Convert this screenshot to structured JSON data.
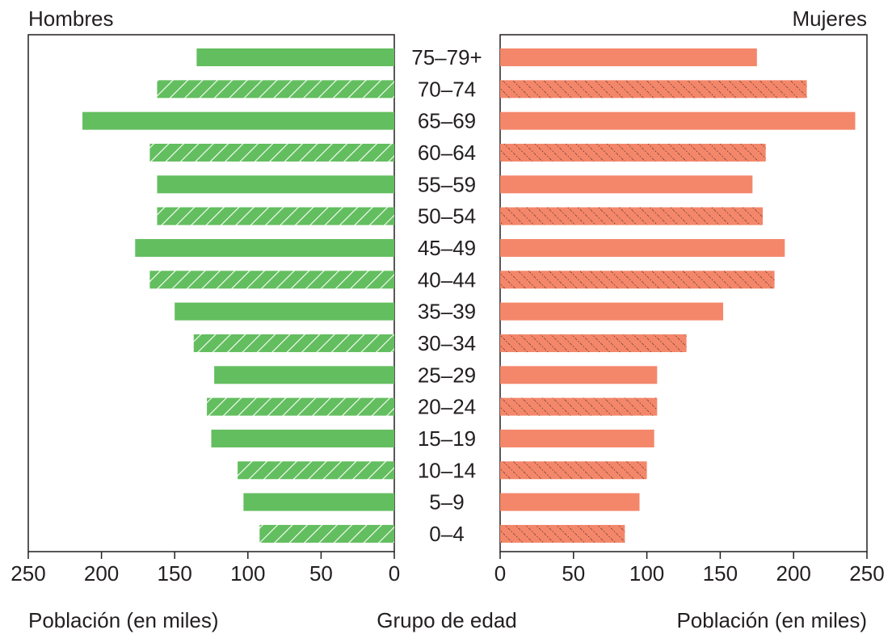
{
  "chart_data": {
    "type": "bar",
    "layout": "population-pyramid",
    "left_title": "Hombres",
    "right_title": "Mujeres",
    "center_label": "Grupo de edad",
    "xlabel_left": "Población (en miles)",
    "xlabel_right": "Población (en miles)",
    "xlim": [
      0,
      250
    ],
    "xticks": [
      0,
      50,
      100,
      150,
      200,
      250
    ],
    "categories": [
      "75–79+",
      "70–74",
      "65–69",
      "60–64",
      "55–59",
      "50–54",
      "45–49",
      "40–44",
      "35–39",
      "30–34",
      "25–29",
      "20–24",
      "15–19",
      "10–14",
      "5–9",
      "0–4"
    ],
    "series": [
      {
        "name": "Hombres",
        "color": "#63be5f",
        "values": [
          135,
          162,
          213,
          167,
          162,
          162,
          177,
          167,
          150,
          137,
          123,
          128,
          125,
          107,
          103,
          92
        ]
      },
      {
        "name": "Mujeres",
        "color": "#f4876a",
        "values": [
          175,
          209,
          242,
          181,
          172,
          179,
          194,
          187,
          152,
          127,
          107,
          107,
          105,
          100,
          95,
          85
        ]
      }
    ],
    "hatched_categories": [
      "70–74",
      "60–64",
      "50–54",
      "40–44",
      "30–34",
      "20–24",
      "10–14",
      "0–4"
    ],
    "grid": false
  }
}
